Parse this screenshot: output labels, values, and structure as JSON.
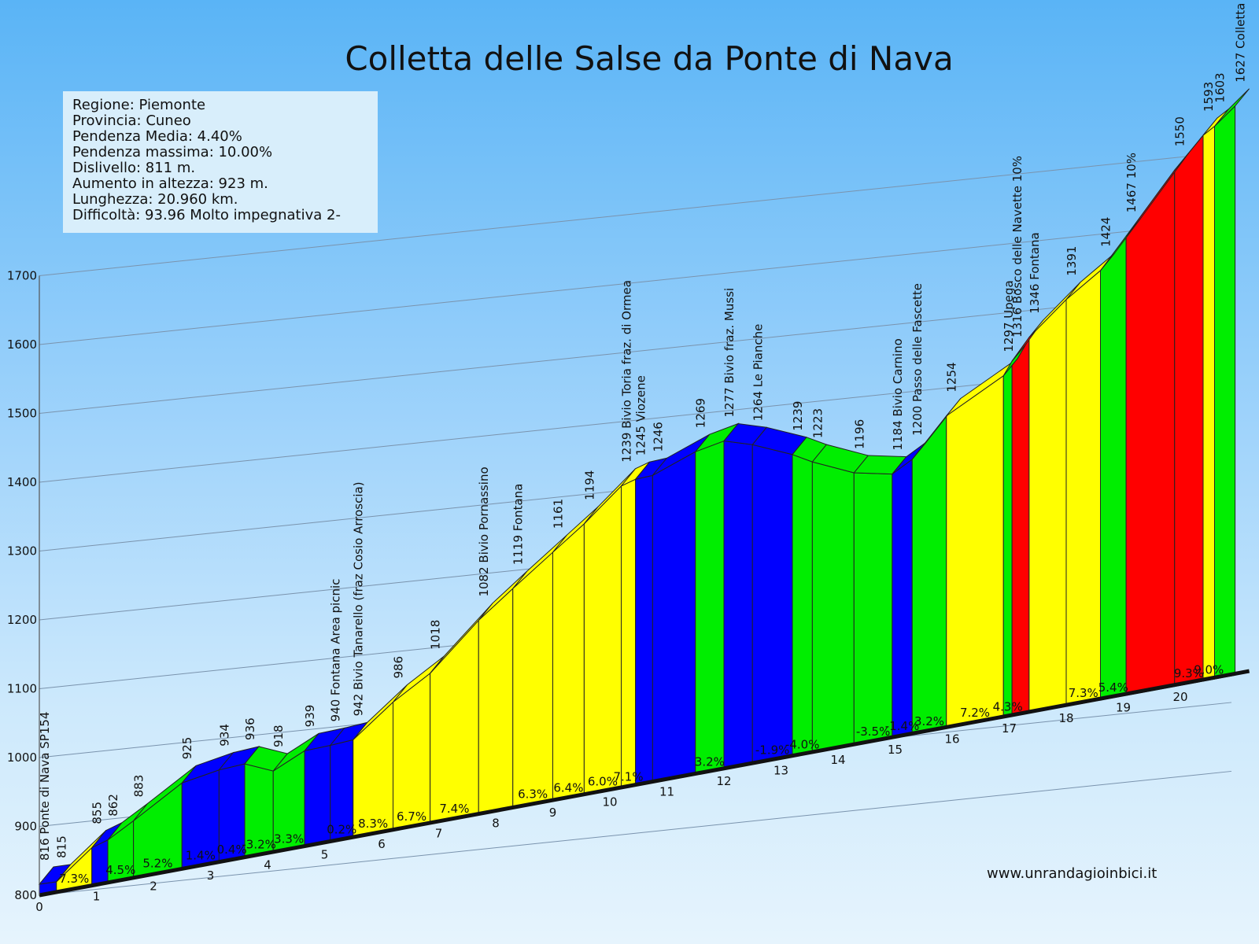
{
  "chart_data": {
    "type": "area",
    "title": "Colletta delle Salse da Ponte di Nava",
    "yticks": [
      800,
      900,
      1000,
      1100,
      1200,
      1300,
      1400,
      1500,
      1600,
      1700
    ],
    "xticks": [
      0,
      1,
      2,
      3,
      4,
      5,
      6,
      7,
      8,
      9,
      10,
      11,
      12,
      13,
      14,
      15,
      16,
      17,
      18,
      19,
      20
    ],
    "ylim": [
      800,
      1700
    ],
    "xlim": [
      0,
      21
    ],
    "points": [
      {
        "x": 0.0,
        "y": 816,
        "label": "816 Ponte di Nava SP154"
      },
      {
        "x": 0.3,
        "y": 815,
        "label": "815"
      },
      {
        "x": 0.92,
        "y": 855,
        "label": "855"
      },
      {
        "x": 1.2,
        "y": 862,
        "label": "862"
      },
      {
        "x": 1.65,
        "y": 883,
        "label": "883"
      },
      {
        "x": 2.5,
        "y": 925,
        "label": "925"
      },
      {
        "x": 3.15,
        "y": 934,
        "label": "934"
      },
      {
        "x": 3.6,
        "y": 936,
        "label": "936"
      },
      {
        "x": 4.1,
        "y": 918,
        "label": "918"
      },
      {
        "x": 4.65,
        "y": 939,
        "label": "939"
      },
      {
        "x": 5.1,
        "y": 940,
        "label": "940 Fontana Area picnic"
      },
      {
        "x": 5.5,
        "y": 942,
        "label": "942 Bivio Tanarello (fraz Cosio Arroscia)"
      },
      {
        "x": 6.2,
        "y": 986,
        "label": "986"
      },
      {
        "x": 6.85,
        "y": 1018,
        "label": "1018"
      },
      {
        "x": 7.7,
        "y": 1082,
        "label": "1082 Bivio Pornassino"
      },
      {
        "x": 8.3,
        "y": 1119,
        "label": "1119 Fontana"
      },
      {
        "x": 9.0,
        "y": 1161,
        "label": "1161"
      },
      {
        "x": 9.55,
        "y": 1194,
        "label": "1194"
      },
      {
        "x": 10.2,
        "y": 1239,
        "label": "1239 Bivio Toria fraz. di Ormea"
      },
      {
        "x": 10.45,
        "y": 1245,
        "label": "1245 Viozene"
      },
      {
        "x": 10.75,
        "y": 1246,
        "label": "1246"
      },
      {
        "x": 11.5,
        "y": 1269,
        "label": "1269"
      },
      {
        "x": 12.0,
        "y": 1277,
        "label": "1277 Bivio fraz. Mussi"
      },
      {
        "x": 12.5,
        "y": 1264,
        "label": "1264 Le Pianche"
      },
      {
        "x": 13.2,
        "y": 1239,
        "label": "1239"
      },
      {
        "x": 13.55,
        "y": 1223,
        "label": "1223"
      },
      {
        "x": 14.28,
        "y": 1196,
        "label": "1196"
      },
      {
        "x": 14.95,
        "y": 1184,
        "label": "1184 Bivio Carnino"
      },
      {
        "x": 15.3,
        "y": 1200,
        "label": "1200 Passo delle Fascette"
      },
      {
        "x": 15.9,
        "y": 1254,
        "label": "1254"
      },
      {
        "x": 16.9,
        "y": 1297,
        "label": "1297 Upega"
      },
      {
        "x": 17.05,
        "y": 1316,
        "label": "1316 Bosco delle Navette 10%"
      },
      {
        "x": 17.35,
        "y": 1346,
        "label": "1346 Fontana"
      },
      {
        "x": 18.0,
        "y": 1391,
        "label": "1391"
      },
      {
        "x": 18.6,
        "y": 1424,
        "label": "1424"
      },
      {
        "x": 19.05,
        "y": 1467,
        "label": "1467 10%"
      },
      {
        "x": 19.9,
        "y": 1550,
        "label": "1550"
      },
      {
        "x": 20.4,
        "y": 1593,
        "label": "1593"
      },
      {
        "x": 20.6,
        "y": 1603,
        "label": "1603"
      },
      {
        "x": 20.96,
        "y": 1627,
        "label": "1627 Colletta"
      }
    ],
    "segments": [
      {
        "from": 0,
        "color": "#0000ff",
        "label": ""
      },
      {
        "from": 1,
        "color": "#ffff00",
        "label": "7.3%"
      },
      {
        "from": 2,
        "color": "#0000ff",
        "label": ""
      },
      {
        "from": 3,
        "color": "#00ee00",
        "label": "4.5%"
      },
      {
        "from": 4,
        "color": "#00ee00",
        "label": "5.2%"
      },
      {
        "from": 5,
        "color": "#0000ff",
        "label": "1.4%"
      },
      {
        "from": 6,
        "color": "#0000ff",
        "label": "0.4%"
      },
      {
        "from": 7,
        "color": "#00ee00",
        "label": "-3.2%"
      },
      {
        "from": 8,
        "color": "#00ee00",
        "label": "3.3%"
      },
      {
        "from": 9,
        "color": "#0000ff",
        "label": ""
      },
      {
        "from": 10,
        "color": "#0000ff",
        "label": "0.2%"
      },
      {
        "from": 11,
        "color": "#ffff00",
        "label": "8.3%"
      },
      {
        "from": 12,
        "color": "#ffff00",
        "label": "6.7%"
      },
      {
        "from": 13,
        "color": "#ffff00",
        "label": "7.4%"
      },
      {
        "from": 14,
        "color": "#ffff00",
        "label": ""
      },
      {
        "from": 15,
        "color": "#ffff00",
        "label": "6.3%"
      },
      {
        "from": 16,
        "color": "#ffff00",
        "label": "6.4%"
      },
      {
        "from": 17,
        "color": "#ffff00",
        "label": "6.0%"
      },
      {
        "from": 18,
        "color": "#ffff00",
        "label": "7.1%"
      },
      {
        "from": 19,
        "color": "#0000ff",
        "label": ""
      },
      {
        "from": 20,
        "color": "#0000ff",
        "label": ""
      },
      {
        "from": 21,
        "color": "#00ee00",
        "label": "3.2%"
      },
      {
        "from": 22,
        "color": "#0000ff",
        "label": ""
      },
      {
        "from": 23,
        "color": "#0000ff",
        "label": "-1.9%"
      },
      {
        "from": 24,
        "color": "#00ee00",
        "label": "-4.0%"
      },
      {
        "from": 25,
        "color": "#00ee00",
        "label": ""
      },
      {
        "from": 26,
        "color": "#00ee00",
        "label": "-3.5%"
      },
      {
        "from": 27,
        "color": "#0000ff",
        "label": "-1.4%"
      },
      {
        "from": 28,
        "color": "#00ee00",
        "label": "3.2%"
      },
      {
        "from": 29,
        "color": "#ffff00",
        "label": "7.2%"
      },
      {
        "from": 30,
        "color": "#00ee00",
        "label": "4.3%"
      },
      {
        "from": 31,
        "color": "#ff0000",
        "label": ""
      },
      {
        "from": 32,
        "color": "#ffff00",
        "label": ""
      },
      {
        "from": 33,
        "color": "#ffff00",
        "label": "7.3%"
      },
      {
        "from": 34,
        "color": "#00ee00",
        "label": "5.4%"
      },
      {
        "from": 35,
        "color": "#ff0000",
        "label": ""
      },
      {
        "from": 36,
        "color": "#ff0000",
        "label": "9.3%"
      },
      {
        "from": 37,
        "color": "#ffff00",
        "label": "9.0%"
      },
      {
        "from": 38,
        "color": "#00ee00",
        "label": ""
      }
    ]
  },
  "info": {
    "regione": "Regione: Piemonte",
    "provincia": "Provincia: Cuneo",
    "pendenza_media": "Pendenza Media: 4.40%",
    "pendenza_massima": "Pendenza massima: 10.00%",
    "dislivello": "Dislivello: 811 m.",
    "aumento": "Aumento in altezza: 923 m.",
    "lunghezza": "Lunghezza: 20.960 km.",
    "difficolta": "Difficoltà: 93.96 Molto impegnativa 2-"
  },
  "website": "www.unrandagioinbici.it"
}
